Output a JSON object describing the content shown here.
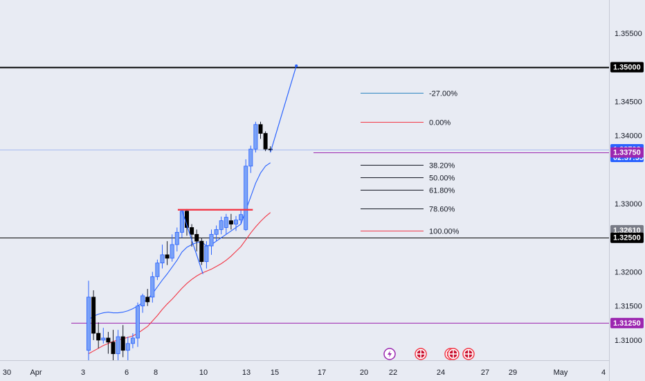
{
  "chart_data": {
    "type": "candlestick",
    "symbol_hint": "",
    "y_axis": {
      "ticks": [
        "1.35500",
        "1.34500",
        "1.34000",
        "1.33000",
        "1.32000",
        "1.31500",
        "1.31000"
      ],
      "ylim": [
        1.30705,
        1.35985
      ]
    },
    "x_axis": {
      "ticks": [
        "30",
        "Apr",
        "3",
        "6",
        "8",
        "10",
        "13",
        "15",
        "17",
        "20",
        "22",
        "24",
        "27",
        "29",
        "May",
        "4"
      ]
    },
    "price_tags": [
      {
        "label": "1.35000",
        "value": 1.35,
        "bg": "#000000",
        "fg": "#ffffff"
      },
      {
        "label": "1.33792",
        "sub": "02:37:55",
        "value": 1.33792,
        "bg": "#2962ff",
        "fg": "#ffffff"
      },
      {
        "label": "1.33750",
        "value": 1.3375,
        "bg": "#9c27b0",
        "fg": "#ffffff"
      },
      {
        "label": "1.32610",
        "value": 1.3261,
        "bg": "#787b86",
        "fg": "#ffffff"
      },
      {
        "label": "1.32500",
        "value": 1.325,
        "bg": "#000000",
        "fg": "#ffffff"
      },
      {
        "label": "1.31250",
        "value": 1.3125,
        "bg": "#9c27b0",
        "fg": "#ffffff"
      }
    ],
    "horizontal_levels": [
      {
        "value": 1.35,
        "color": "#000000"
      },
      {
        "value": 1.325,
        "color": "#000000"
      },
      {
        "value": 1.3125,
        "color": "#9c27b0"
      },
      {
        "value": 1.3375,
        "color": "#9c27b0"
      }
    ],
    "fibonacci": [
      {
        "label": "-27.00%",
        "value": 1.34625,
        "color": "#2e86c1"
      },
      {
        "label": "0.00%",
        "value": 1.342,
        "color": "#f23645"
      },
      {
        "label": "38.20%",
        "value": 1.3357,
        "color": "#131722"
      },
      {
        "label": "50.00%",
        "value": 1.3339,
        "color": "#131722"
      },
      {
        "label": "61.80%",
        "value": 1.332,
        "color": "#131722"
      },
      {
        "label": "78.60%",
        "value": 1.3293,
        "color": "#131722"
      },
      {
        "label": "100.00%",
        "value": 1.326,
        "color": "#f23645"
      }
    ],
    "candles": [
      {
        "o": 1.3085,
        "h": 1.3187,
        "l": 1.307,
        "c": 1.3163
      },
      {
        "o": 1.3163,
        "h": 1.3173,
        "l": 1.31,
        "c": 1.311
      },
      {
        "o": 1.311,
        "h": 1.3126,
        "l": 1.3088,
        "c": 1.31
      },
      {
        "o": 1.31,
        "h": 1.3118,
        "l": 1.3095,
        "c": 1.3103
      },
      {
        "o": 1.3103,
        "h": 1.3112,
        "l": 1.308,
        "c": 1.3097
      },
      {
        "o": 1.3097,
        "h": 1.3115,
        "l": 1.307,
        "c": 1.308
      },
      {
        "o": 1.308,
        "h": 1.3115,
        "l": 1.307,
        "c": 1.3105
      },
      {
        "o": 1.3105,
        "h": 1.3122,
        "l": 1.3075,
        "c": 1.3085
      },
      {
        "o": 1.3085,
        "h": 1.3105,
        "l": 1.307,
        "c": 1.3095
      },
      {
        "o": 1.3095,
        "h": 1.311,
        "l": 1.3088,
        "c": 1.3103
      },
      {
        "o": 1.3103,
        "h": 1.3155,
        "l": 1.309,
        "c": 1.315
      },
      {
        "o": 1.315,
        "h": 1.3168,
        "l": 1.314,
        "c": 1.3165
      },
      {
        "o": 1.3163,
        "h": 1.3175,
        "l": 1.315,
        "c": 1.3156
      },
      {
        "o": 1.3163,
        "h": 1.32,
        "l": 1.3155,
        "c": 1.3193
      },
      {
        "o": 1.3193,
        "h": 1.3218,
        "l": 1.3188,
        "c": 1.3213
      },
      {
        "o": 1.3213,
        "h": 1.324,
        "l": 1.3205,
        "c": 1.3225
      },
      {
        "o": 1.3225,
        "h": 1.3245,
        "l": 1.321,
        "c": 1.322
      },
      {
        "o": 1.322,
        "h": 1.3255,
        "l": 1.3215,
        "c": 1.324
      },
      {
        "o": 1.324,
        "h": 1.3265,
        "l": 1.323,
        "c": 1.3258
      },
      {
        "o": 1.3258,
        "h": 1.3291,
        "l": 1.325,
        "c": 1.3289
      },
      {
        "o": 1.3289,
        "h": 1.3292,
        "l": 1.3253,
        "c": 1.3265
      },
      {
        "o": 1.3265,
        "h": 1.327,
        "l": 1.3237,
        "c": 1.3255
      },
      {
        "o": 1.3255,
        "h": 1.3262,
        "l": 1.323,
        "c": 1.3245
      },
      {
        "o": 1.3245,
        "h": 1.325,
        "l": 1.321,
        "c": 1.3215
      },
      {
        "o": 1.3215,
        "h": 1.3245,
        "l": 1.3205,
        "c": 1.3238
      },
      {
        "o": 1.3238,
        "h": 1.3262,
        "l": 1.3225,
        "c": 1.3255
      },
      {
        "o": 1.3255,
        "h": 1.3268,
        "l": 1.3245,
        "c": 1.3262
      },
      {
        "o": 1.3262,
        "h": 1.3281,
        "l": 1.3255,
        "c": 1.3275
      },
      {
        "o": 1.3265,
        "h": 1.3285,
        "l": 1.3255,
        "c": 1.328
      },
      {
        "o": 1.3275,
        "h": 1.3285,
        "l": 1.3262,
        "c": 1.327
      },
      {
        "o": 1.327,
        "h": 1.3282,
        "l": 1.326,
        "c": 1.3276
      },
      {
        "o": 1.3276,
        "h": 1.329,
        "l": 1.327,
        "c": 1.3284
      },
      {
        "o": 1.3262,
        "h": 1.3365,
        "l": 1.326,
        "c": 1.3355
      },
      {
        "o": 1.3355,
        "h": 1.3385,
        "l": 1.3345,
        "c": 1.338
      },
      {
        "o": 1.338,
        "h": 1.342,
        "l": 1.3375,
        "c": 1.3416
      },
      {
        "o": 1.3416,
        "h": 1.342,
        "l": 1.3395,
        "c": 1.3403
      },
      {
        "o": 1.3403,
        "h": 1.3406,
        "l": 1.3377,
        "c": 1.338
      },
      {
        "o": 1.338,
        "h": 1.3384,
        "l": 1.3376,
        "c": 1.3379
      }
    ],
    "moving_averages": [
      {
        "name": "",
        "color": "#2962ff",
        "values": [
          1.313,
          1.3135,
          1.3138,
          1.314,
          1.3141,
          1.314,
          1.314,
          1.3141,
          1.3143,
          1.3146,
          1.315,
          1.3155,
          1.316,
          1.3168,
          1.3178,
          1.3188,
          1.3197,
          1.3207,
          1.3217,
          1.3229,
          1.3236,
          1.324,
          1.3243,
          1.3244,
          1.3238,
          1.324,
          1.3245,
          1.325,
          1.3255,
          1.326,
          1.3265,
          1.327,
          1.329,
          1.331,
          1.333,
          1.3345,
          1.3355,
          1.336
        ]
      },
      {
        "name": "",
        "color": "#f23645",
        "values": [
          1.308,
          1.3084,
          1.3088,
          1.3092,
          1.3095,
          1.3098,
          1.31,
          1.3102,
          1.3104,
          1.3106,
          1.311,
          1.3115,
          1.312,
          1.3128,
          1.3136,
          1.3145,
          1.3153,
          1.316,
          1.3168,
          1.3176,
          1.3183,
          1.3189,
          1.3194,
          1.3198,
          1.3201,
          1.3204,
          1.3208,
          1.3212,
          1.3217,
          1.3223,
          1.323,
          1.3237,
          1.3247,
          1.3257,
          1.3266,
          1.3274,
          1.3281,
          1.3287
        ]
      }
    ],
    "trendlines": [
      {
        "from": {
          "bar": 19,
          "value": 1.329
        },
        "to": {
          "bar": 23,
          "value": 1.3197
        },
        "color": "#2962ff"
      },
      {
        "from": {
          "bar": 37,
          "value": 1.3375
        },
        "to": {
          "bar": 42,
          "value": 1.3502
        },
        "color": "#2962ff"
      }
    ],
    "resistance_mark": {
      "from_bar": 19,
      "to_bar": 33,
      "value": 1.3291,
      "color": "#f23645"
    },
    "events": [
      {
        "icon": "lightning-icon",
        "bg": "#9c27b0"
      },
      {
        "icon": "uk-flag-icon",
        "bg": "#f23645"
      },
      {
        "icon": "us-flag-icon",
        "bg": "#f23645"
      },
      {
        "icon": "uk-flag-icon",
        "bg": "#f23645"
      },
      {
        "icon": "uk-flag-icon",
        "bg": "#f23645"
      }
    ],
    "grid": false
  }
}
